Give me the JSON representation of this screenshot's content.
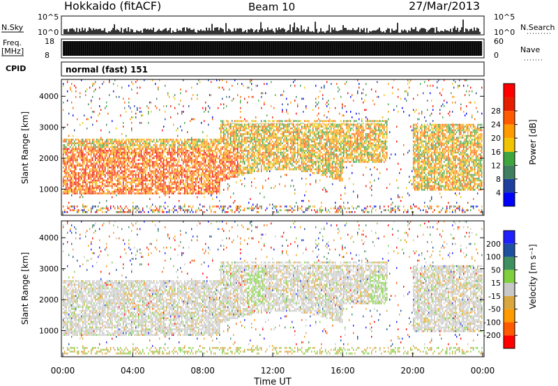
{
  "header": {
    "radar": "Hokkaido (fitACF)",
    "beam": "Beam 10",
    "date": "27/Mar/2013"
  },
  "status_panels": {
    "nsky_label": "N.Sky",
    "nsky_ticks": [
      "10^5",
      "10^0"
    ],
    "nsearch_label": "N.Search",
    "nsearch_ticks": [
      "10^5",
      "10^0"
    ],
    "freq_label": "Freq.",
    "freq_unit": "[MHz]",
    "freq_ticks": [
      "18",
      "8"
    ],
    "nave_label": "Nave",
    "nave_ticks": [
      "60",
      "0"
    ],
    "cpid_label": "CPID",
    "cpid_text": "normal (fast) 151"
  },
  "colors": {
    "axis": "#000000",
    "power_scale": [
      "#0000ff",
      "#1f3f9f",
      "#3f7f5f",
      "#3fa53f",
      "#f0c400",
      "#ff9a00",
      "#ff5a00",
      "#e61e00",
      "#ff0000"
    ],
    "velocity_scale": [
      "#ff0000",
      "#ff5a00",
      "#ff9a00",
      "#d9a63f",
      "#c8c8c8",
      "#7fcf3f",
      "#3f8f5f",
      "#1f4f9f",
      "#2020ff"
    ]
  },
  "chart_data": [
    {
      "type": "heatmap",
      "name": "power",
      "ylabel": "Slant Range [km]",
      "ylim": [
        200,
        4500
      ],
      "xlim": [
        0,
        24
      ],
      "yticks": [
        "1000",
        "2000",
        "3000",
        "4000"
      ],
      "colorbar_label": "Power [dB]",
      "colorbar_ticks": [
        "4",
        "8",
        "12",
        "16",
        "20",
        "24",
        "28"
      ],
      "bands_hours_vs_range_km": [
        {
          "hours": [
            0,
            9
          ],
          "range": [
            800,
            2600
          ],
          "level": "high"
        },
        {
          "hours": [
            9,
            14
          ],
          "range": [
            1600,
            3200
          ],
          "level": "high"
        },
        {
          "hours": [
            14,
            18.5
          ],
          "range": [
            1800,
            3200
          ],
          "level": "high"
        },
        {
          "hours": [
            20,
            24
          ],
          "range": [
            900,
            3100
          ],
          "level": "medium-high"
        }
      ]
    },
    {
      "type": "heatmap",
      "name": "velocity",
      "ylabel": "Slant Range [km]",
      "xlabel": "Time UT",
      "ylim": [
        200,
        4500
      ],
      "xlim": [
        0,
        24
      ],
      "yticks": [
        "1000",
        "2000",
        "3000",
        "4000"
      ],
      "xticks": [
        "00:00",
        "04:00",
        "08:00",
        "12:00",
        "16:00",
        "20:00",
        "00:00"
      ],
      "colorbar_label": "Velocity [m s⁻¹]",
      "colorbar_ticks": [
        "200",
        "100",
        "50",
        "15",
        "-15",
        "-50",
        "-100",
        "-200"
      ],
      "dominant_value_range": [
        -15,
        15
      ]
    }
  ]
}
